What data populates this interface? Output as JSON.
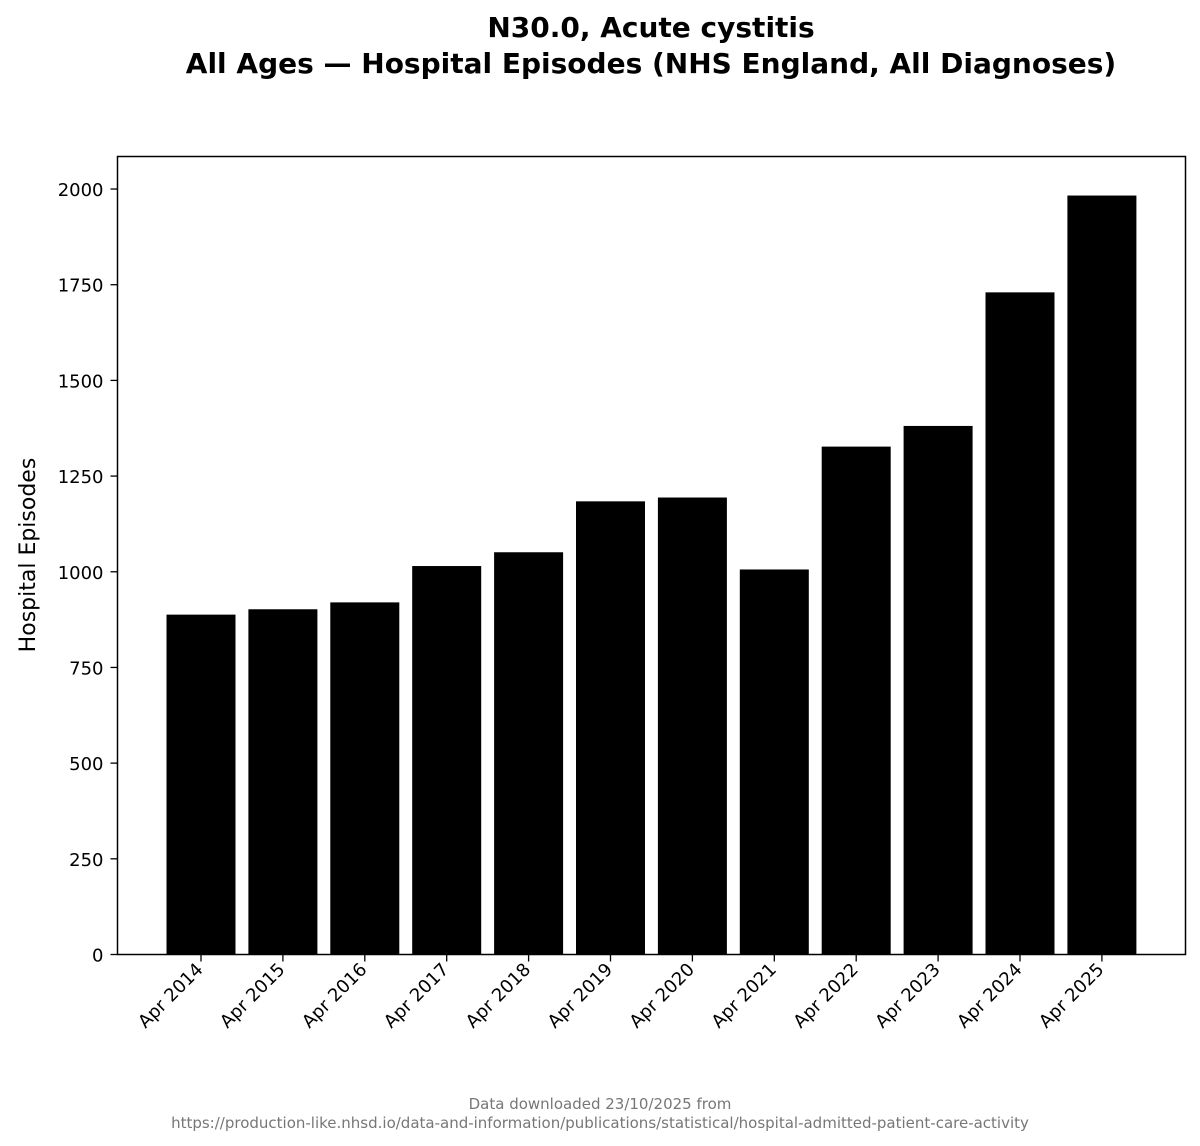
{
  "chart_data": {
    "type": "bar",
    "title": [
      "N30.0, Acute cystitis",
      "All Ages — Hospital Episodes (NHS England, All Diagnoses)"
    ],
    "xlabel": "",
    "ylabel": "Hospital Episodes",
    "categories": [
      "Apr 2014",
      "Apr 2015",
      "Apr 2016",
      "Apr 2017",
      "Apr 2018",
      "Apr 2019",
      "Apr 2020",
      "Apr 2021",
      "Apr 2022",
      "Apr 2023",
      "Apr 2024",
      "Apr 2025"
    ],
    "values": [
      888,
      902,
      920,
      1015,
      1051,
      1184,
      1194,
      1006,
      1327,
      1381,
      1730,
      1983
    ],
    "ylim": [
      0,
      2085
    ],
    "yticks": [
      0,
      250,
      500,
      750,
      1000,
      1250,
      1500,
      1750,
      2000
    ],
    "bar_color": "#000000",
    "grid": false,
    "legend": "none"
  },
  "footer": {
    "line1": "Data downloaded 23/10/2025 from",
    "line2": "https://production-like.nhsd.io/data-and-information/publications/statistical/hospital-admitted-patient-care-activity"
  }
}
